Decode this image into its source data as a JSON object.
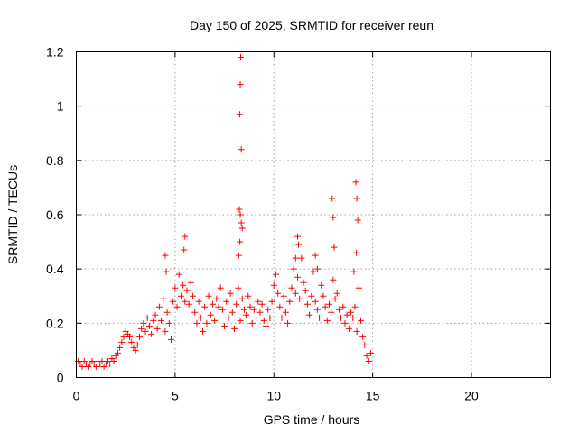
{
  "chart_data": {
    "type": "scatter",
    "title": "Day 150 of 2025, SRMTID for receiver reun",
    "xlabel": "GPS time / hours",
    "ylabel": "SRMTID / TECUs",
    "xlim": [
      0,
      24
    ],
    "ylim": [
      0,
      1.2
    ],
    "x_ticks": [
      0,
      5,
      10,
      15,
      20
    ],
    "x_tick_labels": [
      "0",
      "5",
      "10",
      "15",
      "20"
    ],
    "y_ticks": [
      0,
      0.2,
      0.4,
      0.6,
      0.8,
      1.0,
      1.2
    ],
    "y_tick_labels": [
      "0",
      "0.2",
      "0.4",
      "0.6",
      "0.8",
      "1",
      "1.2"
    ],
    "grid": true,
    "marker": "+",
    "color": "#ff0000",
    "series": [
      {
        "name": "SRMTID",
        "x": [
          0.0,
          0.1,
          0.2,
          0.3,
          0.4,
          0.5,
          0.6,
          0.7,
          0.8,
          0.9,
          1.0,
          1.1,
          1.2,
          1.3,
          1.4,
          1.5,
          1.6,
          1.7,
          1.8,
          1.9,
          2.0,
          2.1,
          2.2,
          2.3,
          2.4,
          2.5,
          2.6,
          2.7,
          2.8,
          2.9,
          3.0,
          3.1,
          3.2,
          3.3,
          3.4,
          3.5,
          3.6,
          3.7,
          3.8,
          3.9,
          4.0,
          4.1,
          4.2,
          4.3,
          4.4,
          4.5,
          4.6,
          4.7,
          4.8,
          4.9,
          5.0,
          5.1,
          5.2,
          5.3,
          5.4,
          5.5,
          5.6,
          5.7,
          5.8,
          5.9,
          6.0,
          6.1,
          6.2,
          6.3,
          6.4,
          6.5,
          6.6,
          6.7,
          6.8,
          6.9,
          7.0,
          7.1,
          7.2,
          7.3,
          7.4,
          7.5,
          7.6,
          7.7,
          7.8,
          7.9,
          8.0,
          8.1,
          8.2,
          8.3,
          8.4,
          8.5,
          8.6,
          8.7,
          8.8,
          8.9,
          9.0,
          9.1,
          9.2,
          9.3,
          9.4,
          9.5,
          9.6,
          9.7,
          9.8,
          9.9,
          10.0,
          10.1,
          10.2,
          10.3,
          10.4,
          10.5,
          10.6,
          10.7,
          10.8,
          10.9,
          11.0,
          11.1,
          11.2,
          11.3,
          11.4,
          11.5,
          11.6,
          11.7,
          11.8,
          11.9,
          12.0,
          12.1,
          12.2,
          12.3,
          12.4,
          12.5,
          12.6,
          12.7,
          12.8,
          12.9,
          13.0,
          13.1,
          13.2,
          13.3,
          13.4,
          13.5,
          13.6,
          13.7,
          13.8,
          13.9,
          14.0,
          14.1,
          14.2,
          14.3,
          14.4,
          14.5,
          14.6,
          14.7,
          14.8,
          14.9,
          8.25,
          8.27,
          8.3,
          8.32,
          8.35,
          8.4,
          8.3,
          8.28,
          8.22,
          8.35,
          12.95,
          13.0,
          13.05,
          14.15,
          14.2,
          14.25,
          14.18,
          4.5,
          4.55,
          5.5,
          5.45,
          11.2,
          11.25,
          11.1,
          12.1,
          12.2,
          14.05
        ],
        "y": [
          0.05,
          0.06,
          0.05,
          0.04,
          0.06,
          0.05,
          0.04,
          0.05,
          0.06,
          0.05,
          0.04,
          0.06,
          0.05,
          0.06,
          0.04,
          0.05,
          0.06,
          0.05,
          0.07,
          0.06,
          0.08,
          0.09,
          0.11,
          0.13,
          0.15,
          0.17,
          0.16,
          0.15,
          0.13,
          0.11,
          0.1,
          0.12,
          0.15,
          0.18,
          0.2,
          0.17,
          0.22,
          0.19,
          0.16,
          0.21,
          0.23,
          0.18,
          0.26,
          0.21,
          0.29,
          0.17,
          0.24,
          0.2,
          0.14,
          0.28,
          0.33,
          0.26,
          0.38,
          0.3,
          0.34,
          0.28,
          0.32,
          0.27,
          0.35,
          0.3,
          0.24,
          0.2,
          0.28,
          0.22,
          0.17,
          0.26,
          0.2,
          0.3,
          0.23,
          0.27,
          0.21,
          0.29,
          0.26,
          0.33,
          0.25,
          0.19,
          0.28,
          0.22,
          0.31,
          0.24,
          0.18,
          0.27,
          0.33,
          0.21,
          0.29,
          0.25,
          0.23,
          0.3,
          0.26,
          0.2,
          0.25,
          0.22,
          0.28,
          0.24,
          0.27,
          0.21,
          0.19,
          0.25,
          0.22,
          0.28,
          0.34,
          0.38,
          0.31,
          0.26,
          0.22,
          0.3,
          0.24,
          0.2,
          0.28,
          0.33,
          0.4,
          0.31,
          0.37,
          0.29,
          0.44,
          0.35,
          0.32,
          0.27,
          0.23,
          0.3,
          0.39,
          0.28,
          0.25,
          0.22,
          0.34,
          0.3,
          0.26,
          0.21,
          0.27,
          0.24,
          0.36,
          0.29,
          0.31,
          0.25,
          0.22,
          0.26,
          0.2,
          0.23,
          0.18,
          0.24,
          0.22,
          0.26,
          0.17,
          0.33,
          0.21,
          0.15,
          0.12,
          0.08,
          0.06,
          0.09,
          0.62,
          0.97,
          1.08,
          1.18,
          0.84,
          0.55,
          0.6,
          0.5,
          0.45,
          0.57,
          0.66,
          0.59,
          0.48,
          0.72,
          0.66,
          0.58,
          0.46,
          0.45,
          0.39,
          0.52,
          0.47,
          0.52,
          0.49,
          0.44,
          0.45,
          0.4,
          0.39
        ]
      }
    ]
  }
}
